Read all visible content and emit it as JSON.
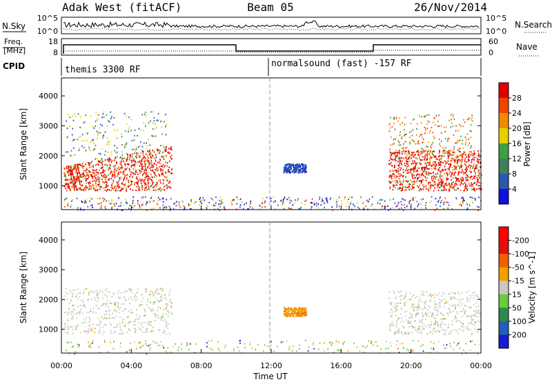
{
  "header": {
    "station": "Adak West (fitACF)",
    "beam": "Beam 05",
    "date": "26/Nov/2014"
  },
  "panels": {
    "nsky": {
      "left_label": "N.Sky",
      "right_label": "N.Search",
      "left_ticks": [
        "10^5",
        "10^0"
      ],
      "right_ticks": [
        "10^5",
        "10^0"
      ]
    },
    "freq": {
      "left_label_1": "Freq.",
      "left_label_2": "[MHz]",
      "right_label": "Nave",
      "left_ticks": [
        "18",
        "8"
      ],
      "right_ticks": [
        "60",
        "0"
      ]
    },
    "cpid": {
      "label": "CPID",
      "segments": [
        {
          "name": "themis 3300 RF",
          "start_hour": 0
        },
        {
          "name": "normalsound (fast) -157 RF",
          "start_hour": 12
        }
      ]
    }
  },
  "chart_data": [
    {
      "type": "heatmap",
      "name": "power",
      "ylabel": "Slant Range [km]",
      "xlabel": "Time UT",
      "ylim": [
        200,
        4600
      ],
      "yticks": [
        "1000",
        "2000",
        "3000",
        "4000"
      ],
      "xticks": [
        "00:00",
        "04:00",
        "08:00",
        "12:00",
        "16:00",
        "20:00",
        "00:00"
      ],
      "colorbar": {
        "label": "Power [dB]",
        "ticks": [
          "4",
          "8",
          "12",
          "16",
          "20",
          "24",
          "28"
        ],
        "colors": [
          "#1010e0",
          "#2a58b0",
          "#3f7f5f",
          "#40a040",
          "#e6d000",
          "#f08a00",
          "#ee4400",
          "#e00000"
        ]
      },
      "scatter_regions": [
        {
          "hours": [
            0.1,
            6.3
          ],
          "range_km": [
            850,
            2300
          ],
          "level": "high"
        },
        {
          "hours": [
            0.2,
            6.0
          ],
          "range_km": [
            1900,
            3500
          ],
          "level": "low"
        },
        {
          "hours": [
            12.7,
            14.0
          ],
          "range_km": [
            1450,
            1750
          ],
          "level": "mid-low"
        },
        {
          "hours": [
            18.7,
            24.0
          ],
          "range_km": [
            850,
            2200
          ],
          "level": "high"
        },
        {
          "hours": [
            18.7,
            23.5
          ],
          "range_km": [
            2000,
            3400
          ],
          "level": "mid"
        },
        {
          "hours": [
            0,
            24
          ],
          "range_km": [
            200,
            650
          ],
          "level": "ground"
        }
      ]
    },
    {
      "type": "heatmap",
      "name": "velocity",
      "ylabel": "Slant Range [km]",
      "xlabel": "Time UT",
      "ylim": [
        200,
        4600
      ],
      "yticks": [
        "1000",
        "2000",
        "3000",
        "4000"
      ],
      "xticks": [
        "00:00",
        "04:00",
        "08:00",
        "12:00",
        "16:00",
        "20:00",
        "00:00"
      ],
      "colorbar": {
        "label": "Velocity [m s^-1]",
        "ticks": [
          "200",
          "100",
          "50",
          "15",
          "-15",
          "-50",
          "-100",
          "-200"
        ],
        "colors": [
          "#1a1acf",
          "#2060b8",
          "#2e8a4a",
          "#6bcb3a",
          "#c8c8c0",
          "#f0a000",
          "#f06000",
          "#e01010",
          "#ff0000"
        ]
      },
      "scatter_regions": [
        {
          "hours": [
            0.1,
            6.3
          ],
          "range_km": [
            850,
            2400
          ],
          "level": "ground"
        },
        {
          "hours": [
            12.7,
            14.0
          ],
          "range_km": [
            1450,
            1750
          ],
          "level": "negative"
        },
        {
          "hours": [
            18.7,
            24.0
          ],
          "range_km": [
            850,
            2300
          ],
          "level": "ground"
        },
        {
          "hours": [
            0,
            24
          ],
          "range_km": [
            200,
            650
          ],
          "level": "mixed"
        }
      ]
    }
  ]
}
